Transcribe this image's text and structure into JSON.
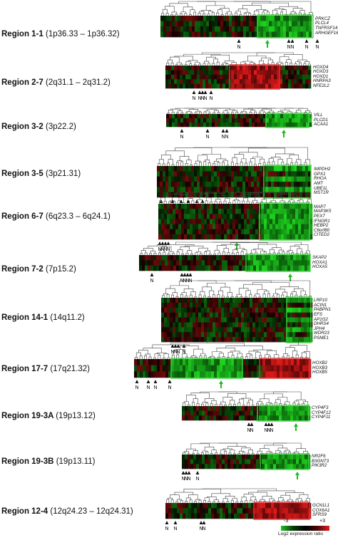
{
  "regions": [
    {
      "name": "Region 1-1",
      "loc": "(1p36.33 – 1p36.32)",
      "genes": [
        "PRKCZ",
        "PLCL4",
        "TNFRSF14",
        "ARHGEF16"
      ]
    },
    {
      "name": "Region 2-7",
      "loc": "(2q31.1 – 2q31.2)",
      "genes": [
        "HOXD4",
        "HOXD3",
        "HOXD1",
        "HNRPA3",
        "NFE2L2"
      ]
    },
    {
      "name": "Region 3-2",
      "loc": "(3p22.2)",
      "genes": [
        "VILL",
        "PLCD1",
        "ACAA1"
      ]
    },
    {
      "name": "Region 3-5",
      "loc": "(3p21.31)",
      "genes": [
        "IMPDH2",
        "GPX1",
        "RHOA",
        "AMT",
        "UBE1L",
        "MST1R"
      ]
    },
    {
      "name": "Region 6-7",
      "loc": "(6q23.3 – 6q24.1)",
      "genes": [
        "MAP7",
        "MAP3K5",
        "PEX7",
        "IFNGR1",
        "HEBP2",
        "C6orf80",
        "CITED2"
      ]
    },
    {
      "name": "Region 7-2",
      "loc": "(7p15.2)",
      "genes": [
        "SKAP2",
        "HOXA1",
        "HOXA5"
      ]
    },
    {
      "name": "Region 14-1",
      "loc": "(14q11.2)",
      "genes": [
        "LRP10",
        "ACIN1",
        "PABPN1",
        "EFS",
        "AP1G2",
        "DHRS4",
        "JPH4",
        "WDR23",
        "PSME1"
      ]
    },
    {
      "name": "Region 17-7",
      "loc": "(17q21.32)",
      "genes": [
        "HOXB2",
        "HOXB3",
        "HOXB5"
      ]
    },
    {
      "name": "Region 19-3A",
      "loc": "(19p13.12)",
      "genes": [
        "CYP4F3",
        "CYP4F12",
        "CYP4F11"
      ]
    },
    {
      "name": "Region 19-3B",
      "loc": "(19p13.11)",
      "genes": [
        "NR2F6",
        "B3GNT3",
        "PIK3R2"
      ]
    },
    {
      "name": "Region 12-4",
      "loc": "(12q24.23 – 12q24.31)",
      "genes": [
        "GCN1L1",
        "COX6A1",
        "SFRS9"
      ]
    }
  ],
  "marker_label": "N",
  "legend": {
    "low": "-3",
    "high": "+3",
    "caption": "Log2 expression ratio"
  },
  "colors": {
    "green": "#22c322",
    "red": "#e21c1c",
    "box_green": "#3fd43f",
    "box_red": "#e23030",
    "arrow": "#22b922"
  }
}
